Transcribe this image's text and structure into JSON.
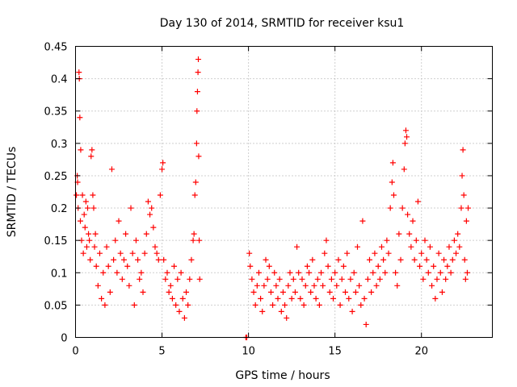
{
  "chart_data": {
    "type": "scatter",
    "title": "Day 130 of 2014, SRMTID for receiver ksu1",
    "xlabel": "GPS time / hours",
    "ylabel": "SRMTID / TECUs",
    "xlim": [
      0,
      24.1
    ],
    "ylim": [
      0,
      0.45
    ],
    "x_ticks": [
      0,
      5,
      10,
      15,
      20
    ],
    "x_tick_labels": [
      "0",
      "5",
      "10",
      "15",
      "20"
    ],
    "y_ticks": [
      0,
      0.05,
      0.1,
      0.15,
      0.2,
      0.25,
      0.3,
      0.35,
      0.4,
      0.45
    ],
    "y_tick_labels": [
      "0",
      "0.05",
      "0.1",
      "0.15",
      "0.2",
      "0.25",
      "0.3",
      "0.35",
      "0.4",
      "0.45"
    ],
    "grid": true,
    "marker": "+",
    "color": "#ff0000",
    "data_gap_hours": [
      7.2,
      9.8
    ],
    "series": [
      {
        "name": "ksu1",
        "points": [
          [
            0.05,
            0.22
          ],
          [
            0.1,
            0.25
          ],
          [
            0.12,
            0.24
          ],
          [
            0.15,
            0.2
          ],
          [
            0.2,
            0.41
          ],
          [
            0.22,
            0.4
          ],
          [
            0.25,
            0.34
          ],
          [
            0.28,
            0.18
          ],
          [
            0.3,
            0.29
          ],
          [
            0.35,
            0.15
          ],
          [
            0.4,
            0.22
          ],
          [
            0.45,
            0.13
          ],
          [
            0.5,
            0.19
          ],
          [
            0.55,
            0.17
          ],
          [
            0.6,
            0.21
          ],
          [
            0.65,
            0.14
          ],
          [
            0.7,
            0.2
          ],
          [
            0.75,
            0.16
          ],
          [
            0.8,
            0.15
          ],
          [
            0.85,
            0.12
          ],
          [
            0.9,
            0.28
          ],
          [
            0.95,
            0.29
          ],
          [
            1.0,
            0.22
          ],
          [
            1.05,
            0.2
          ],
          [
            1.1,
            0.14
          ],
          [
            1.15,
            0.16
          ],
          [
            1.2,
            0.11
          ],
          [
            1.3,
            0.08
          ],
          [
            1.4,
            0.13
          ],
          [
            1.5,
            0.06
          ],
          [
            1.6,
            0.1
          ],
          [
            1.7,
            0.05
          ],
          [
            1.8,
            0.14
          ],
          [
            1.9,
            0.11
          ],
          [
            2.0,
            0.07
          ],
          [
            2.1,
            0.26
          ],
          [
            2.2,
            0.12
          ],
          [
            2.3,
            0.15
          ],
          [
            2.4,
            0.1
          ],
          [
            2.5,
            0.18
          ],
          [
            2.6,
            0.13
          ],
          [
            2.7,
            0.09
          ],
          [
            2.8,
            0.12
          ],
          [
            2.9,
            0.16
          ],
          [
            3.0,
            0.11
          ],
          [
            3.1,
            0.08
          ],
          [
            3.2,
            0.2
          ],
          [
            3.3,
            0.13
          ],
          [
            3.4,
            0.05
          ],
          [
            3.5,
            0.15
          ],
          [
            3.6,
            0.12
          ],
          [
            3.7,
            0.09
          ],
          [
            3.8,
            0.1
          ],
          [
            3.9,
            0.07
          ],
          [
            4.0,
            0.13
          ],
          [
            4.1,
            0.16
          ],
          [
            4.2,
            0.21
          ],
          [
            4.3,
            0.19
          ],
          [
            4.4,
            0.2
          ],
          [
            4.5,
            0.17
          ],
          [
            4.6,
            0.14
          ],
          [
            4.7,
            0.13
          ],
          [
            4.8,
            0.12
          ],
          [
            4.9,
            0.22
          ],
          [
            5.0,
            0.26
          ],
          [
            5.05,
            0.27
          ],
          [
            5.1,
            0.12
          ],
          [
            5.2,
            0.09
          ],
          [
            5.3,
            0.1
          ],
          [
            5.4,
            0.07
          ],
          [
            5.5,
            0.08
          ],
          [
            5.6,
            0.06
          ],
          [
            5.7,
            0.11
          ],
          [
            5.8,
            0.05
          ],
          [
            5.9,
            0.09
          ],
          [
            6.0,
            0.04
          ],
          [
            6.1,
            0.1
          ],
          [
            6.2,
            0.06
          ],
          [
            6.3,
            0.03
          ],
          [
            6.4,
            0.07
          ],
          [
            6.5,
            0.05
          ],
          [
            6.6,
            0.09
          ],
          [
            6.7,
            0.12
          ],
          [
            6.8,
            0.15
          ],
          [
            6.85,
            0.16
          ],
          [
            6.9,
            0.22
          ],
          [
            6.95,
            0.24
          ],
          [
            7.0,
            0.3
          ],
          [
            7.02,
            0.35
          ],
          [
            7.05,
            0.38
          ],
          [
            7.08,
            0.41
          ],
          [
            7.1,
            0.43
          ],
          [
            7.12,
            0.28
          ],
          [
            7.15,
            0.15
          ],
          [
            7.18,
            0.09
          ],
          [
            9.85,
            0.0
          ],
          [
            9.9,
            0.0
          ],
          [
            10.05,
            0.13
          ],
          [
            10.1,
            0.11
          ],
          [
            10.2,
            0.09
          ],
          [
            10.3,
            0.07
          ],
          [
            10.4,
            0.05
          ],
          [
            10.5,
            0.08
          ],
          [
            10.6,
            0.1
          ],
          [
            10.7,
            0.06
          ],
          [
            10.8,
            0.04
          ],
          [
            10.9,
            0.08
          ],
          [
            11.0,
            0.12
          ],
          [
            11.1,
            0.09
          ],
          [
            11.2,
            0.11
          ],
          [
            11.3,
            0.07
          ],
          [
            11.4,
            0.05
          ],
          [
            11.5,
            0.1
          ],
          [
            11.6,
            0.08
          ],
          [
            11.7,
            0.06
          ],
          [
            11.8,
            0.09
          ],
          [
            11.9,
            0.04
          ],
          [
            12.0,
            0.07
          ],
          [
            12.1,
            0.05
          ],
          [
            12.2,
            0.03
          ],
          [
            12.3,
            0.08
          ],
          [
            12.4,
            0.1
          ],
          [
            12.5,
            0.06
          ],
          [
            12.6,
            0.09
          ],
          [
            12.7,
            0.07
          ],
          [
            12.8,
            0.14
          ],
          [
            12.9,
            0.1
          ],
          [
            13.0,
            0.06
          ],
          [
            13.1,
            0.09
          ],
          [
            13.2,
            0.05
          ],
          [
            13.3,
            0.08
          ],
          [
            13.4,
            0.11
          ],
          [
            13.5,
            0.1
          ],
          [
            13.6,
            0.07
          ],
          [
            13.7,
            0.12
          ],
          [
            13.8,
            0.08
          ],
          [
            13.9,
            0.06
          ],
          [
            14.0,
            0.09
          ],
          [
            14.1,
            0.05
          ],
          [
            14.2,
            0.1
          ],
          [
            14.3,
            0.08
          ],
          [
            14.4,
            0.13
          ],
          [
            14.5,
            0.15
          ],
          [
            14.6,
            0.11
          ],
          [
            14.7,
            0.07
          ],
          [
            14.8,
            0.09
          ],
          [
            14.9,
            0.06
          ],
          [
            15.0,
            0.1
          ],
          [
            15.1,
            0.08
          ],
          [
            15.2,
            0.12
          ],
          [
            15.3,
            0.05
          ],
          [
            15.4,
            0.09
          ],
          [
            15.5,
            0.11
          ],
          [
            15.6,
            0.07
          ],
          [
            15.7,
            0.13
          ],
          [
            15.8,
            0.06
          ],
          [
            15.9,
            0.09
          ],
          [
            16.0,
            0.04
          ],
          [
            16.1,
            0.1
          ],
          [
            16.2,
            0.07
          ],
          [
            16.3,
            0.14
          ],
          [
            16.4,
            0.08
          ],
          [
            16.5,
            0.05
          ],
          [
            16.6,
            0.18
          ],
          [
            16.7,
            0.06
          ],
          [
            16.8,
            0.02
          ],
          [
            16.9,
            0.09
          ],
          [
            17.0,
            0.12
          ],
          [
            17.1,
            0.07
          ],
          [
            17.2,
            0.1
          ],
          [
            17.3,
            0.13
          ],
          [
            17.4,
            0.08
          ],
          [
            17.5,
            0.11
          ],
          [
            17.6,
            0.09
          ],
          [
            17.7,
            0.14
          ],
          [
            17.8,
            0.12
          ],
          [
            17.9,
            0.1
          ],
          [
            18.0,
            0.15
          ],
          [
            18.1,
            0.13
          ],
          [
            18.2,
            0.2
          ],
          [
            18.3,
            0.24
          ],
          [
            18.35,
            0.27
          ],
          [
            18.4,
            0.22
          ],
          [
            18.5,
            0.1
          ],
          [
            18.6,
            0.08
          ],
          [
            18.7,
            0.16
          ],
          [
            18.8,
            0.12
          ],
          [
            18.9,
            0.2
          ],
          [
            19.0,
            0.26
          ],
          [
            19.05,
            0.3
          ],
          [
            19.1,
            0.32
          ],
          [
            19.15,
            0.31
          ],
          [
            19.2,
            0.19
          ],
          [
            19.3,
            0.16
          ],
          [
            19.4,
            0.14
          ],
          [
            19.5,
            0.18
          ],
          [
            19.6,
            0.12
          ],
          [
            19.7,
            0.15
          ],
          [
            19.8,
            0.21
          ],
          [
            19.9,
            0.11
          ],
          [
            20.0,
            0.13
          ],
          [
            20.1,
            0.09
          ],
          [
            20.2,
            0.15
          ],
          [
            20.3,
            0.12
          ],
          [
            20.4,
            0.1
          ],
          [
            20.5,
            0.14
          ],
          [
            20.6,
            0.08
          ],
          [
            20.7,
            0.11
          ],
          [
            20.8,
            0.06
          ],
          [
            20.9,
            0.09
          ],
          [
            21.0,
            0.13
          ],
          [
            21.1,
            0.1
          ],
          [
            21.2,
            0.07
          ],
          [
            21.3,
            0.12
          ],
          [
            21.4,
            0.09
          ],
          [
            21.5,
            0.11
          ],
          [
            21.6,
            0.14
          ],
          [
            21.7,
            0.1
          ],
          [
            21.8,
            0.12
          ],
          [
            21.9,
            0.15
          ],
          [
            22.0,
            0.13
          ],
          [
            22.1,
            0.16
          ],
          [
            22.2,
            0.14
          ],
          [
            22.3,
            0.2
          ],
          [
            22.35,
            0.25
          ],
          [
            22.4,
            0.29
          ],
          [
            22.45,
            0.22
          ],
          [
            22.5,
            0.12
          ],
          [
            22.55,
            0.09
          ],
          [
            22.6,
            0.18
          ],
          [
            22.65,
            0.1
          ],
          [
            22.7,
            0.2
          ]
        ]
      }
    ]
  }
}
